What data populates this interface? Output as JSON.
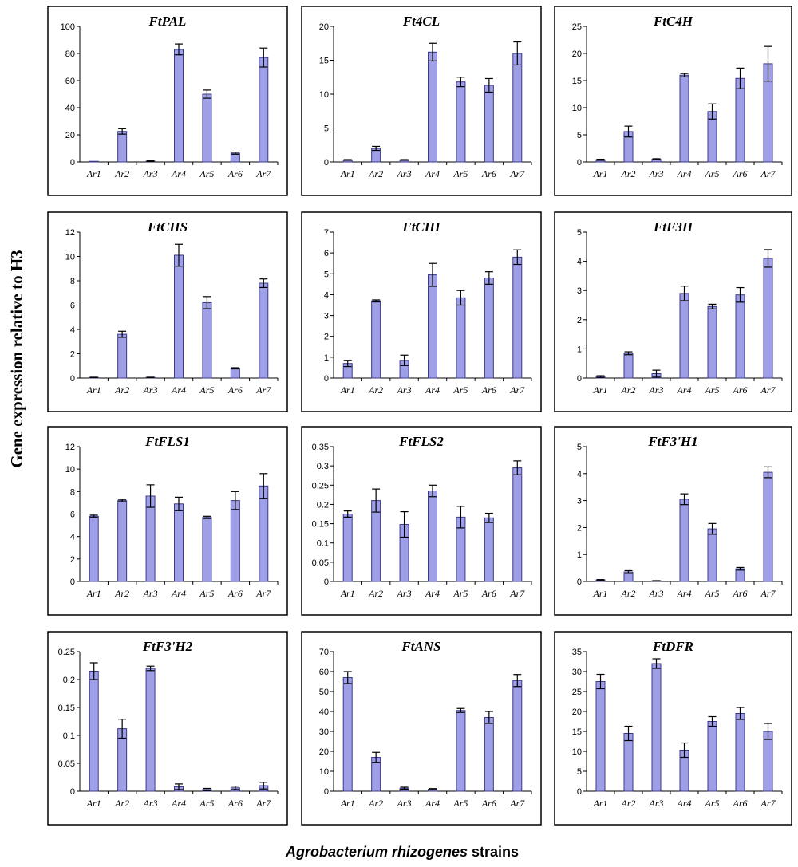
{
  "figure": {
    "y_label": "Gene expression relative to H3",
    "x_label_italic": "Agrobacterium rhizogenes",
    "x_label_plain": " strains",
    "bar_color": "#9f9fe8",
    "bar_stroke": "#3a3a8a"
  },
  "chart_data": [
    {
      "type": "bar",
      "title": "FtPAL",
      "categories": [
        "Ar1",
        "Ar2",
        "Ar3",
        "Ar4",
        "Ar5",
        "Ar6",
        "Ar7"
      ],
      "values": [
        0,
        22.5,
        0.5,
        83,
        50,
        6.5,
        77
      ],
      "errors": [
        0,
        2,
        0.3,
        4,
        3,
        0.8,
        7
      ],
      "ylim": [
        0,
        100
      ],
      "yticks": [
        "0",
        "20",
        "40",
        "60",
        "80",
        "100"
      ]
    },
    {
      "type": "bar",
      "title": "Ft4CL",
      "categories": [
        "Ar1",
        "Ar2",
        "Ar3",
        "Ar4",
        "Ar5",
        "Ar6",
        "Ar7"
      ],
      "values": [
        0.3,
        2,
        0.3,
        16.2,
        11.8,
        11.3,
        16
      ],
      "errors": [
        0.05,
        0.3,
        0.05,
        1.3,
        0.7,
        1,
        1.7
      ],
      "ylim": [
        0,
        20
      ],
      "yticks": [
        "0",
        "5",
        "10",
        "15",
        "20"
      ]
    },
    {
      "type": "bar",
      "title": "FtC4H",
      "categories": [
        "Ar1",
        "Ar2",
        "Ar3",
        "Ar4",
        "Ar5",
        "Ar6",
        "Ar7"
      ],
      "values": [
        0.4,
        5.6,
        0.5,
        16,
        9.3,
        15.4,
        18.1
      ],
      "errors": [
        0.1,
        1,
        0.1,
        0.3,
        1.4,
        1.9,
        3.2
      ],
      "ylim": [
        0,
        25
      ],
      "yticks": [
        "0",
        "5",
        "10",
        "15",
        "20",
        "25"
      ]
    },
    {
      "type": "bar",
      "title": "FtCHS",
      "categories": [
        "Ar1",
        "Ar2",
        "Ar3",
        "Ar4",
        "Ar5",
        "Ar6",
        "Ar7"
      ],
      "values": [
        0.05,
        3.6,
        0.05,
        10.1,
        6.2,
        0.8,
        7.8
      ],
      "errors": [
        0.02,
        0.25,
        0.02,
        0.9,
        0.5,
        0.05,
        0.35
      ],
      "ylim": [
        0,
        12
      ],
      "yticks": [
        "0",
        "2",
        "4",
        "6",
        "8",
        "10",
        "12"
      ]
    },
    {
      "type": "bar",
      "title": "FtCHI",
      "categories": [
        "Ar1",
        "Ar2",
        "Ar3",
        "Ar4",
        "Ar5",
        "Ar6",
        "Ar7"
      ],
      "values": [
        0.7,
        3.7,
        0.85,
        4.95,
        3.85,
        4.8,
        5.8
      ],
      "errors": [
        0.15,
        0.05,
        0.25,
        0.55,
        0.35,
        0.3,
        0.35
      ],
      "ylim": [
        0,
        7
      ],
      "yticks": [
        "0",
        "1",
        "2",
        "3",
        "4",
        "5",
        "6",
        "7"
      ]
    },
    {
      "type": "bar",
      "title": "FtF3H",
      "categories": [
        "Ar1",
        "Ar2",
        "Ar3",
        "Ar4",
        "Ar5",
        "Ar6",
        "Ar7"
      ],
      "values": [
        0.05,
        0.85,
        0.15,
        2.9,
        2.45,
        2.85,
        4.1
      ],
      "errors": [
        0.03,
        0.05,
        0.12,
        0.25,
        0.08,
        0.25,
        0.3
      ],
      "ylim": [
        0,
        5
      ],
      "yticks": [
        "0",
        "1",
        "2",
        "3",
        "4",
        "5"
      ]
    },
    {
      "type": "bar",
      "title": "FtFLS1",
      "categories": [
        "Ar1",
        "Ar2",
        "Ar3",
        "Ar4",
        "Ar5",
        "Ar6",
        "Ar7"
      ],
      "values": [
        5.8,
        7.2,
        7.6,
        6.9,
        5.7,
        7.2,
        8.5
      ],
      "errors": [
        0.1,
        0.1,
        1,
        0.6,
        0.1,
        0.8,
        1.1
      ],
      "ylim": [
        0,
        12
      ],
      "yticks": [
        "0",
        "2",
        "4",
        "6",
        "8",
        "10",
        "12"
      ]
    },
    {
      "type": "bar",
      "title": "FtFLS2",
      "categories": [
        "Ar1",
        "Ar2",
        "Ar3",
        "Ar4",
        "Ar5",
        "Ar6",
        "Ar7"
      ],
      "values": [
        0.175,
        0.21,
        0.148,
        0.235,
        0.167,
        0.165,
        0.295
      ],
      "errors": [
        0.008,
        0.03,
        0.033,
        0.015,
        0.028,
        0.012,
        0.018
      ],
      "ylim": [
        0,
        0.35
      ],
      "yticks": [
        "0",
        "0.05",
        "0.1",
        "0.15",
        "0.2",
        "0.25",
        "0.3",
        "0.35"
      ]
    },
    {
      "type": "bar",
      "title": "FtF3'H1",
      "categories": [
        "Ar1",
        "Ar2",
        "Ar3",
        "Ar4",
        "Ar5",
        "Ar6",
        "Ar7"
      ],
      "values": [
        0.05,
        0.35,
        0.02,
        3.05,
        1.95,
        0.47,
        4.05
      ],
      "errors": [
        0.02,
        0.05,
        0.01,
        0.2,
        0.2,
        0.05,
        0.2
      ],
      "ylim": [
        0,
        5
      ],
      "yticks": [
        "0",
        "1",
        "2",
        "3",
        "4",
        "5"
      ]
    },
    {
      "type": "bar",
      "title": "FtF3'H2",
      "categories": [
        "Ar1",
        "Ar2",
        "Ar3",
        "Ar4",
        "Ar5",
        "Ar6",
        "Ar7"
      ],
      "values": [
        0.215,
        0.112,
        0.22,
        0.008,
        0.003,
        0.006,
        0.01
      ],
      "errors": [
        0.015,
        0.017,
        0.004,
        0.005,
        0.002,
        0.003,
        0.006
      ],
      "ylim": [
        0,
        0.25
      ],
      "yticks": [
        "0",
        "0.05",
        "0.1",
        "0.15",
        "0.2",
        "0.25"
      ]
    },
    {
      "type": "bar",
      "title": "FtANS",
      "categories": [
        "Ar1",
        "Ar2",
        "Ar3",
        "Ar4",
        "Ar5",
        "Ar6",
        "Ar7"
      ],
      "values": [
        57,
        17,
        1.5,
        1,
        40.5,
        37,
        55.5
      ],
      "errors": [
        3,
        2.5,
        0.5,
        0.3,
        1,
        3,
        3
      ],
      "ylim": [
        0,
        70
      ],
      "yticks": [
        "0",
        "10",
        "20",
        "30",
        "40",
        "50",
        "60",
        "70"
      ]
    },
    {
      "type": "bar",
      "title": "FtDFR",
      "categories": [
        "Ar1",
        "Ar2",
        "Ar3",
        "Ar4",
        "Ar5",
        "Ar6",
        "Ar7"
      ],
      "values": [
        27.5,
        14.5,
        32,
        10.3,
        17.5,
        19.5,
        15
      ],
      "errors": [
        1.8,
        1.8,
        1.2,
        1.8,
        1.2,
        1.5,
        2
      ],
      "ylim": [
        0,
        35
      ],
      "yticks": [
        "0",
        "5",
        "10",
        "15",
        "20",
        "25",
        "30",
        "35"
      ]
    }
  ]
}
